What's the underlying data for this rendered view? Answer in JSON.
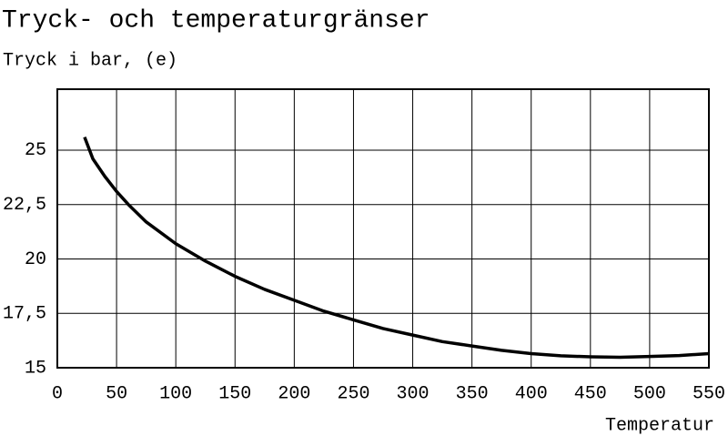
{
  "chart_data": {
    "type": "line",
    "title": "Tryck- och temperaturgränser",
    "y_label": "Tryck i bar, (e)",
    "x_label": "Temperatur",
    "x": [
      23,
      30,
      40,
      50,
      60,
      75,
      100,
      125,
      150,
      175,
      200,
      225,
      250,
      275,
      300,
      325,
      350,
      375,
      400,
      425,
      450,
      475,
      500,
      525,
      550
    ],
    "series": [
      {
        "name": "Tryck",
        "color": "#000000",
        "values": [
          25.6,
          24.6,
          23.8,
          23.1,
          22.5,
          21.7,
          20.7,
          19.9,
          19.2,
          18.6,
          18.1,
          17.6,
          17.2,
          16.8,
          16.5,
          16.2,
          16.0,
          15.8,
          15.65,
          15.55,
          15.5,
          15.48,
          15.52,
          15.56,
          15.65
        ]
      }
    ],
    "xlim": [
      0,
      550
    ],
    "xticks": [
      0,
      50,
      100,
      150,
      200,
      250,
      300,
      350,
      400,
      450,
      500,
      550
    ],
    "ylim": [
      15,
      27.8
    ],
    "yticks": [
      15,
      {
        "value": 17.5,
        "label": "17,5"
      },
      20,
      {
        "value": 22.5,
        "label": "22,5"
      },
      25
    ],
    "grid": true
  }
}
